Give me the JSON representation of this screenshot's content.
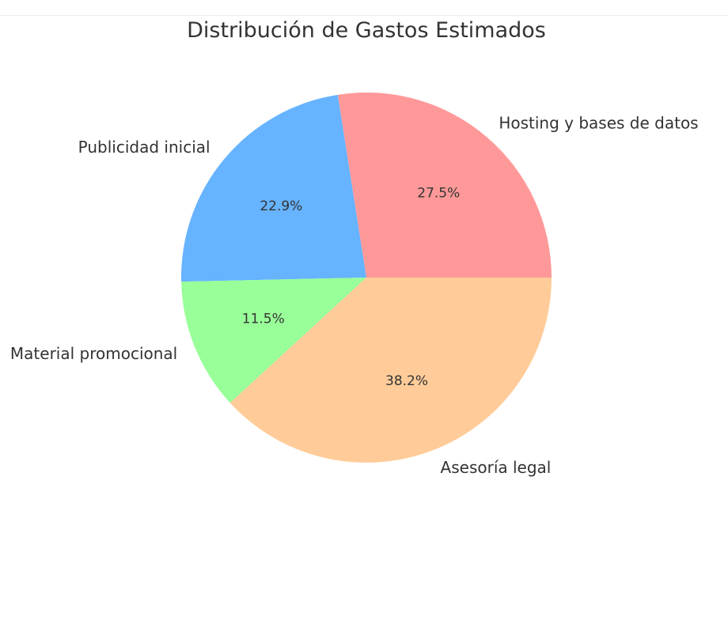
{
  "chart_data": {
    "type": "pie",
    "title": "Distribución de Gastos Estimados",
    "categories": [
      "Hosting y bases de datos",
      "Publicidad inicial",
      "Material promocional",
      "Asesoría legal"
    ],
    "values": [
      27.5,
      22.9,
      11.5,
      38.2
    ],
    "value_labels": [
      "27.5%",
      "22.9%",
      "11.5%",
      "38.2%"
    ],
    "colors": [
      "#ff9999",
      "#66b3ff",
      "#99ff99",
      "#ffcc99"
    ],
    "start_angle_deg": 0,
    "direction": "counterclockwise",
    "legend": "none"
  }
}
